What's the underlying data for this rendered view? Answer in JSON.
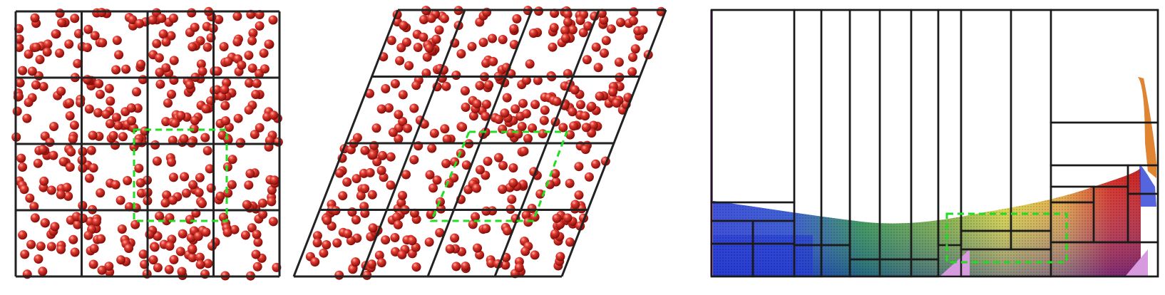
{
  "panels": [
    {
      "name": "orthogonal-cell-grid",
      "description_kind": "square domain divided into 4x4 subdomains with particles",
      "grid": {
        "cols": 4,
        "rows": 4
      },
      "particle_color": "#cc1f1a",
      "highlight_color": "#22dd22"
    },
    {
      "name": "sheared-cell-grid",
      "description_kind": "parallelogram domain divided into 4x4 subdomains with particles",
      "grid": {
        "cols": 4,
        "rows": 4
      },
      "particle_color": "#cc1f1a",
      "highlight_color": "#22dd22"
    },
    {
      "name": "adaptive-decomposition",
      "description_kind": "irregular rectangular domain decomposition over a breaking fluid",
      "fluid_colors": [
        "#2a3fd6",
        "#2e9c3a",
        "#e6df34",
        "#e8a63a",
        "#d42a22"
      ],
      "wall_color": "#d89adf",
      "highlight_color": "#22dd22"
    }
  ]
}
